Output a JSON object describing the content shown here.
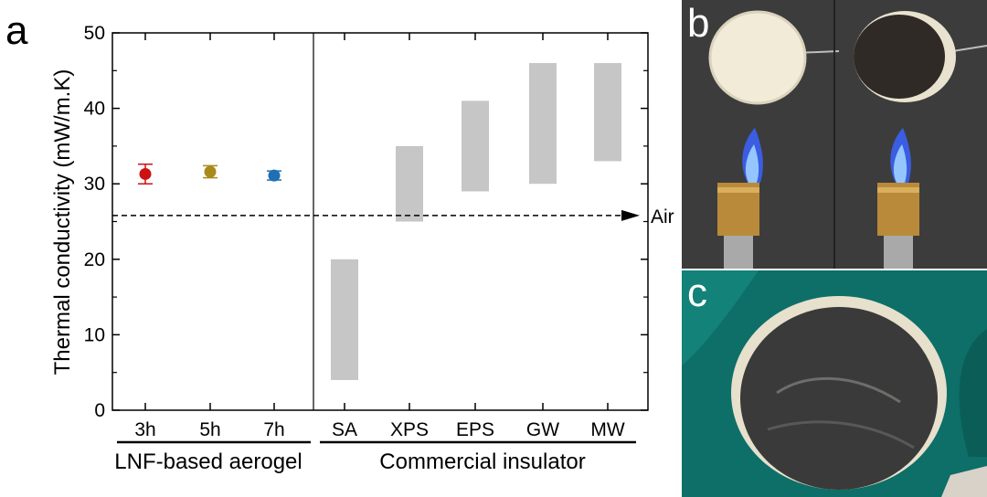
{
  "panels": {
    "a": "a",
    "b": "b",
    "c": "c"
  },
  "chart_data": {
    "type": "scatter",
    "ylabel": "Thermal conductivity (mW/m.K)",
    "ylim": [
      0,
      50
    ],
    "yticks": [
      0,
      10,
      20,
      30,
      40,
      50
    ],
    "groups": [
      "LNF-based aerogel",
      "Commercial insulator"
    ],
    "aerogel_points": [
      {
        "label": "3h",
        "value": 31.3,
        "err_low": 30.0,
        "err_high": 32.6,
        "color": "#cc1111"
      },
      {
        "label": "5h",
        "value": 31.6,
        "err_low": 30.8,
        "err_high": 32.4,
        "color": "#a88a1a"
      },
      {
        "label": "7h",
        "value": 31.1,
        "err_low": 30.5,
        "err_high": 31.7,
        "color": "#1f6fb2"
      }
    ],
    "commercial_ranges": [
      {
        "label": "SA",
        "min": 4,
        "max": 20
      },
      {
        "label": "XPS",
        "min": 25,
        "max": 35
      },
      {
        "label": "EPS",
        "min": 29,
        "max": 41
      },
      {
        "label": "GW",
        "min": 30,
        "max": 46
      },
      {
        "label": "MW",
        "min": 33,
        "max": 46
      }
    ],
    "reference_line": {
      "label": "Air",
      "value": 25.8
    },
    "range_color": "#c6c6c6"
  }
}
